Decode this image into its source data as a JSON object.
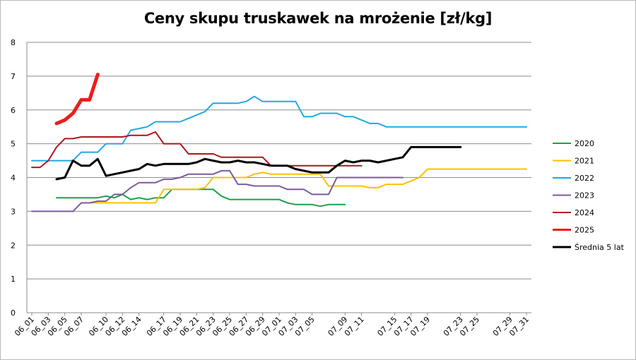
{
  "chart_data": {
    "type": "line",
    "title": "Ceny skupu truskawek na mrożenie [zł/kg]",
    "xlabel": "",
    "ylabel": "",
    "ylim": [
      0,
      8
    ],
    "yticks": [
      0,
      1,
      2,
      3,
      4,
      5,
      6,
      7,
      8
    ],
    "grid": "horizontal",
    "legend_position": "right",
    "categories": [
      "06_01",
      "06_02",
      "06_03",
      "06_04",
      "06_05",
      "06_06",
      "06_07",
      "06_08",
      "06_09",
      "06_10",
      "06_11",
      "06_12",
      "06_13",
      "06_14",
      "06_15",
      "06_16",
      "06_17",
      "06_18",
      "06_19",
      "06_20",
      "06_21",
      "06_22",
      "06_23",
      "06_24",
      "06_25",
      "06_26",
      "06_27",
      "06_28",
      "06_29",
      "06_30",
      "07_01",
      "07_02",
      "07_03",
      "07_04",
      "07_05",
      "07_06",
      "07_07",
      "07_08",
      "07_09",
      "07_10",
      "07_11",
      "07_12",
      "07_13",
      "07_14",
      "07_15",
      "07_16",
      "07_17",
      "07_18",
      "07_19",
      "07_20",
      "07_21",
      "07_22",
      "07_23",
      "07_24",
      "07_25",
      "07_26",
      "07_27",
      "07_28",
      "07_29",
      "07_30",
      "07_31"
    ],
    "tick_labels": [
      "06_01",
      "06_03",
      "06_05",
      "06_07",
      "06_10",
      "06_12",
      "06_14",
      "06_17",
      "06_19",
      "06_21",
      "06_23",
      "06_25",
      "06_27",
      "06_29",
      "07_01",
      "07_03",
      "07_05",
      "07_09",
      "07_11",
      "07_15",
      "07_17",
      "07_19",
      "07_23",
      "07_25",
      "07_29",
      "07_31"
    ],
    "series": [
      {
        "name": "2020",
        "color": "#1aa14a",
        "width": 2,
        "values": [
          null,
          null,
          null,
          3.4,
          3.4,
          3.4,
          3.4,
          3.4,
          3.4,
          3.45,
          3.4,
          3.5,
          3.35,
          3.4,
          3.35,
          3.4,
          3.4,
          3.65,
          3.65,
          3.65,
          3.65,
          3.65,
          3.65,
          3.45,
          3.35,
          3.35,
          3.35,
          3.35,
          3.35,
          3.35,
          3.35,
          3.25,
          3.2,
          3.2,
          3.2,
          3.15,
          3.2,
          3.2,
          3.2,
          null,
          null,
          null,
          null,
          null,
          null,
          null,
          null,
          null,
          null,
          null,
          null,
          null,
          null,
          null,
          null,
          null,
          null,
          null,
          null,
          null,
          null
        ]
      },
      {
        "name": "2021",
        "color": "#ffc000",
        "width": 2,
        "values": [
          null,
          null,
          null,
          null,
          null,
          null,
          null,
          3.25,
          3.25,
          3.25,
          3.25,
          3.25,
          3.25,
          3.25,
          3.25,
          3.25,
          3.65,
          3.65,
          3.65,
          3.65,
          3.65,
          3.7,
          4.0,
          4.0,
          4.0,
          4.0,
          4.0,
          4.1,
          4.15,
          4.1,
          4.1,
          4.1,
          4.1,
          4.1,
          4.1,
          4.1,
          3.75,
          3.75,
          3.75,
          3.75,
          3.75,
          3.7,
          3.7,
          3.8,
          3.8,
          3.8,
          3.9,
          4.0,
          4.25,
          4.25,
          4.25,
          4.25,
          4.25,
          4.25,
          4.25,
          4.25,
          4.25,
          4.25,
          4.25,
          4.25,
          4.25
        ]
      },
      {
        "name": "2022",
        "color": "#1fa9e0",
        "width": 2,
        "values": [
          4.5,
          4.5,
          4.5,
          4.5,
          4.5,
          4.5,
          4.75,
          4.75,
          4.75,
          5.0,
          5.0,
          5.0,
          5.4,
          5.45,
          5.5,
          5.65,
          5.65,
          5.65,
          5.65,
          5.75,
          5.85,
          5.95,
          6.2,
          6.2,
          6.2,
          6.2,
          6.25,
          6.4,
          6.25,
          6.25,
          6.25,
          6.25,
          6.25,
          5.8,
          5.8,
          5.9,
          5.9,
          5.9,
          5.8,
          5.8,
          5.7,
          5.6,
          5.6,
          5.5,
          5.5,
          5.5,
          5.5,
          5.5,
          5.5,
          5.5,
          5.5,
          5.5,
          5.5,
          5.5,
          5.5,
          5.5,
          5.5,
          5.5,
          5.5,
          5.5,
          5.5
        ]
      },
      {
        "name": "2023",
        "color": "#7a5aa0",
        "width": 2,
        "values": [
          3.0,
          3.0,
          3.0,
          3.0,
          3.0,
          3.0,
          3.25,
          3.25,
          3.3,
          3.3,
          3.5,
          3.5,
          3.7,
          3.85,
          3.85,
          3.85,
          3.95,
          3.95,
          4.0,
          4.1,
          4.1,
          4.1,
          4.1,
          4.2,
          4.2,
          3.8,
          3.8,
          3.75,
          3.75,
          3.75,
          3.75,
          3.65,
          3.65,
          3.65,
          3.5,
          3.5,
          3.5,
          4.0,
          4.0,
          4.0,
          4.0,
          4.0,
          4.0,
          4.0,
          4.0,
          4.0,
          null,
          null,
          null,
          null,
          null,
          null,
          null,
          null,
          null,
          null,
          null,
          null,
          null,
          null,
          null
        ]
      },
      {
        "name": "2024",
        "color": "#b0141e",
        "width": 2,
        "values": [
          4.3,
          4.3,
          4.5,
          4.9,
          5.15,
          5.15,
          5.2,
          5.2,
          5.2,
          5.2,
          5.2,
          5.2,
          5.25,
          5.25,
          5.25,
          5.35,
          5.0,
          5.0,
          5.0,
          4.7,
          4.7,
          4.7,
          4.7,
          4.6,
          4.6,
          4.6,
          4.6,
          4.6,
          4.6,
          4.35,
          4.35,
          4.35,
          4.35,
          4.35,
          4.35,
          4.35,
          4.35,
          4.35,
          4.35,
          4.35,
          4.35,
          null,
          null,
          null,
          null,
          null,
          null,
          null,
          null,
          null,
          null,
          null,
          null,
          null,
          null,
          null,
          null,
          null,
          null,
          null,
          null
        ]
      },
      {
        "name": "2025",
        "color": "#ee1c1c",
        "width": 5,
        "values": [
          null,
          null,
          null,
          5.6,
          5.7,
          5.9,
          6.3,
          6.3,
          7.05,
          null,
          null,
          null,
          null,
          null,
          null,
          null,
          null,
          null,
          null,
          null,
          null,
          null,
          null,
          null,
          null,
          null,
          null,
          null,
          null,
          null,
          null,
          null,
          null,
          null,
          null,
          null,
          null,
          null,
          null,
          null,
          null,
          null,
          null,
          null,
          null,
          null,
          null,
          null,
          null,
          null,
          null,
          null,
          null,
          null,
          null,
          null,
          null,
          null,
          null,
          null,
          null
        ]
      },
      {
        "name": "Średnia 5 lat",
        "color": "#000000",
        "width": 3,
        "values": [
          null,
          null,
          null,
          3.95,
          4.0,
          4.5,
          4.35,
          4.35,
          4.55,
          4.05,
          4.1,
          4.15,
          4.2,
          4.25,
          4.4,
          4.35,
          4.4,
          4.4,
          4.4,
          4.4,
          4.45,
          4.55,
          4.5,
          4.45,
          4.45,
          4.5,
          4.45,
          4.45,
          4.4,
          4.35,
          4.35,
          4.35,
          4.25,
          4.2,
          4.15,
          4.15,
          4.15,
          4.35,
          4.5,
          4.45,
          4.5,
          4.5,
          4.45,
          4.5,
          4.55,
          4.6,
          4.9,
          4.9,
          4.9,
          4.9,
          4.9,
          4.9,
          4.9,
          null,
          null,
          null,
          null,
          null,
          null,
          null,
          null
        ]
      }
    ]
  }
}
